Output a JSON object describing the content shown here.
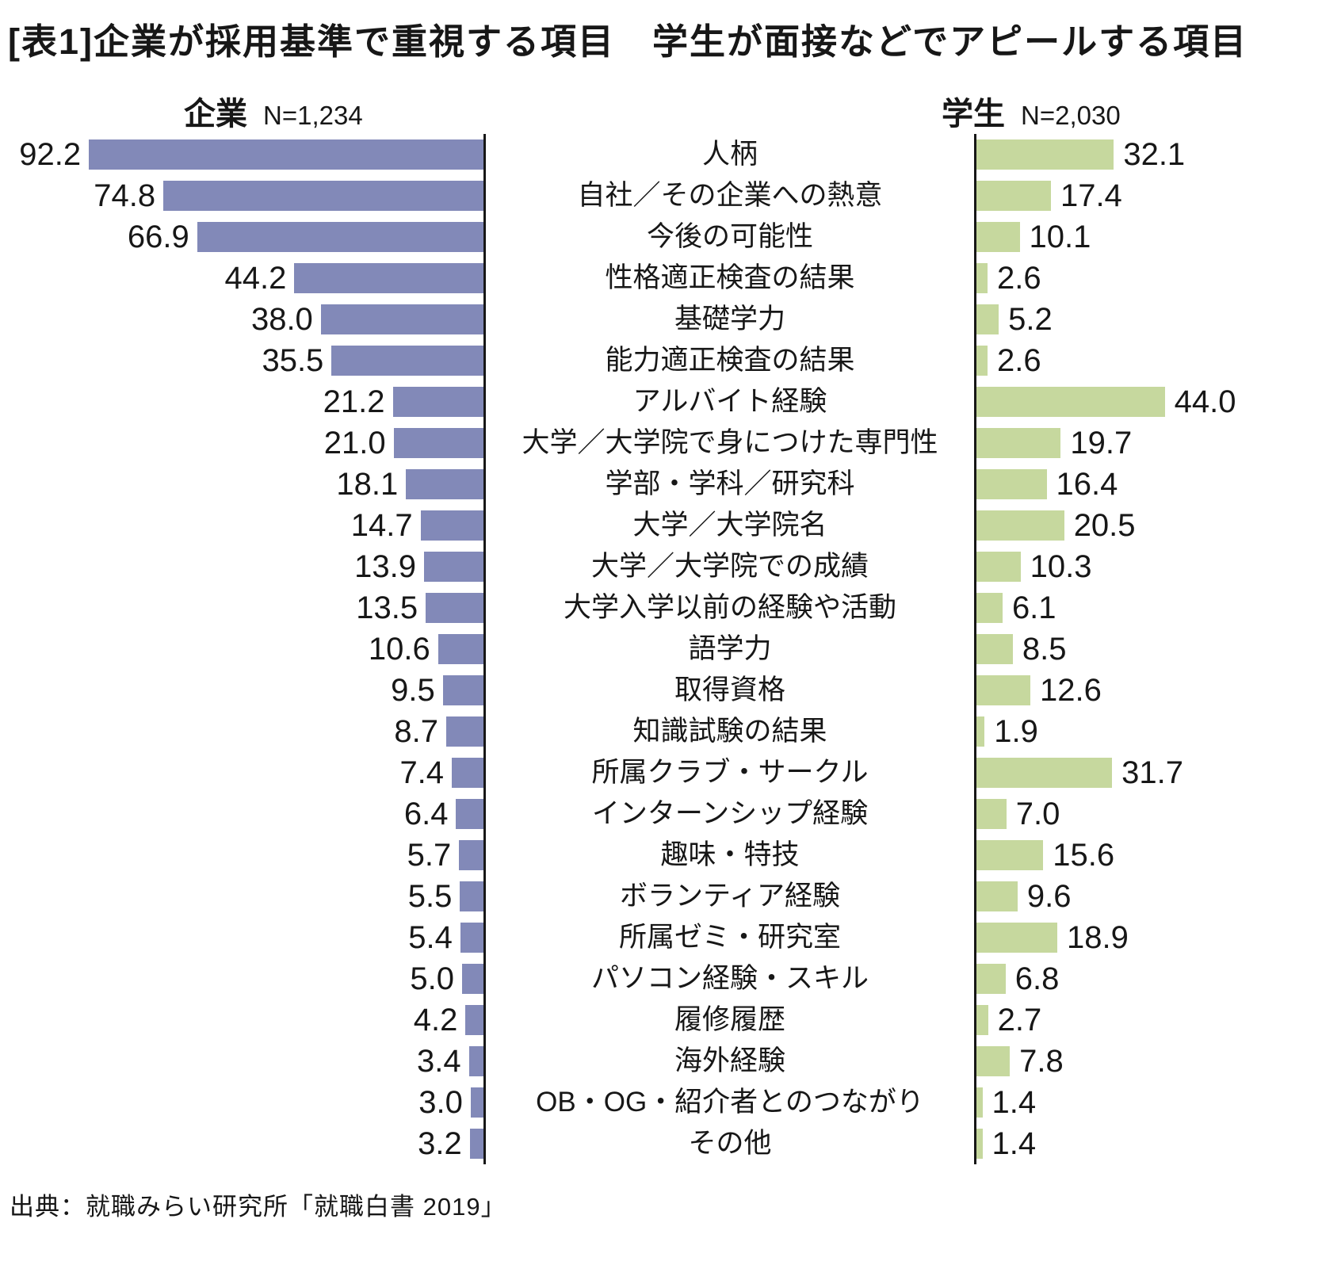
{
  "title": "[表1]企業が採用基準で重視する項目　学生が面接などでアピールする項目",
  "source": "出典：就職みらい研究所「就職白書 2019」",
  "colors": {
    "company_bar": "#8289b8",
    "student_bar": "#c6d89e",
    "axis": "#171717",
    "text": "#171717"
  },
  "chart_data": {
    "type": "bar",
    "variant": "diverging-horizontal",
    "left_header": {
      "label": "企業",
      "n": "N=1,234"
    },
    "right_header": {
      "label": "学生",
      "n": "N=2,030"
    },
    "value_unit": "%",
    "xmax": 100,
    "categories": [
      "人柄",
      "自社／その企業への熱意",
      "今後の可能性",
      "性格適正検査の結果",
      "基礎学力",
      "能力適正検査の結果",
      "アルバイト経験",
      "大学／大学院で身につけた専門性",
      "学部・学科／研究科",
      "大学／大学院名",
      "大学／大学院での成績",
      "大学入学以前の経験や活動",
      "語学力",
      "取得資格",
      "知識試験の結果",
      "所属クラブ・サークル",
      "インターンシップ経験",
      "趣味・特技",
      "ボランティア経験",
      "所属ゼミ・研究室",
      "パソコン経験・スキル",
      "履修履歴",
      "海外経験",
      "OB・OG・紹介者とのつながり",
      "その他"
    ],
    "series": [
      {
        "name": "企業",
        "values": [
          92.2,
          74.8,
          66.9,
          44.2,
          38.0,
          35.5,
          21.2,
          21.0,
          18.1,
          14.7,
          13.9,
          13.5,
          10.6,
          9.5,
          8.7,
          7.4,
          6.4,
          5.7,
          5.5,
          5.4,
          5.0,
          4.2,
          3.4,
          3.0,
          3.2
        ]
      },
      {
        "name": "学生",
        "values": [
          32.1,
          17.4,
          10.1,
          2.6,
          5.2,
          2.6,
          44.0,
          19.7,
          16.4,
          20.5,
          10.3,
          6.1,
          8.5,
          12.6,
          1.9,
          31.7,
          7.0,
          15.6,
          9.6,
          18.9,
          6.8,
          2.7,
          7.8,
          1.4,
          1.4
        ]
      }
    ]
  }
}
